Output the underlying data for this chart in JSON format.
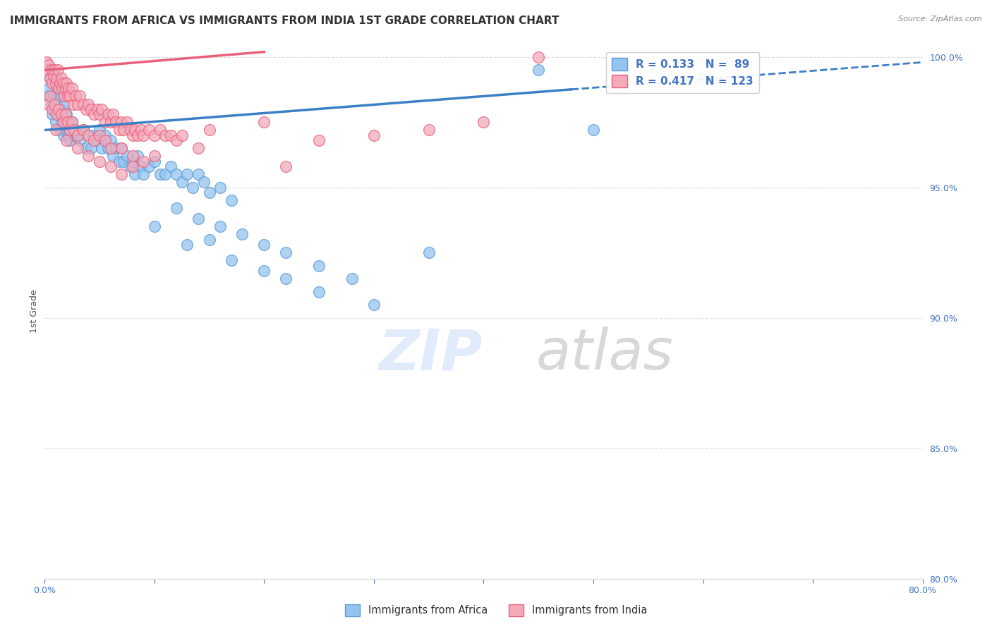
{
  "title": "IMMIGRANTS FROM AFRICA VS IMMIGRANTS FROM INDIA 1ST GRADE CORRELATION CHART",
  "source": "Source: ZipAtlas.com",
  "ylabel": "1st Grade",
  "xlim": [
    0.0,
    80.0
  ],
  "ylim": [
    80.0,
    100.5
  ],
  "xticks": [
    0.0,
    10.0,
    20.0,
    30.0,
    40.0,
    50.0,
    60.0,
    70.0,
    80.0
  ],
  "yticks": [
    80.0,
    85.0,
    90.0,
    95.0,
    100.0
  ],
  "legend_entries": [
    "Immigrants from Africa",
    "Immigrants from India"
  ],
  "africa_color": "#94C4F0",
  "india_color": "#F4AABB",
  "africa_edge_color": "#5B9BD5",
  "india_edge_color": "#E8607A",
  "africa_line_color": "#3B7FC4",
  "india_line_color": "#E8607A",
  "R_africa": 0.133,
  "N_africa": 89,
  "R_india": 0.417,
  "N_india": 123,
  "africa_trend_x": [
    0.0,
    80.0
  ],
  "africa_trend_y": [
    97.2,
    99.8
  ],
  "africa_solid_x_end": 48.0,
  "india_trend_x": [
    0.0,
    20.0
  ],
  "india_trend_y": [
    99.5,
    100.2
  ],
  "africa_points": [
    [
      0.3,
      98.5
    ],
    [
      0.4,
      98.8
    ],
    [
      0.5,
      99.2
    ],
    [
      0.6,
      98.2
    ],
    [
      0.7,
      97.8
    ],
    [
      0.8,
      98.5
    ],
    [
      0.9,
      98.0
    ],
    [
      1.0,
      99.0
    ],
    [
      1.0,
      97.5
    ],
    [
      1.1,
      98.3
    ],
    [
      1.2,
      97.8
    ],
    [
      1.3,
      98.5
    ],
    [
      1.4,
      97.2
    ],
    [
      1.5,
      98.0
    ],
    [
      1.6,
      97.5
    ],
    [
      1.7,
      97.0
    ],
    [
      1.8,
      98.2
    ],
    [
      1.9,
      97.5
    ],
    [
      2.0,
      97.8
    ],
    [
      2.1,
      97.0
    ],
    [
      2.2,
      97.2
    ],
    [
      2.3,
      96.8
    ],
    [
      2.5,
      97.5
    ],
    [
      2.6,
      97.0
    ],
    [
      2.8,
      97.2
    ],
    [
      3.0,
      97.0
    ],
    [
      3.2,
      96.8
    ],
    [
      3.5,
      97.2
    ],
    [
      3.8,
      96.5
    ],
    [
      4.0,
      97.0
    ],
    [
      4.2,
      96.5
    ],
    [
      4.5,
      97.0
    ],
    [
      4.8,
      96.8
    ],
    [
      5.0,
      97.2
    ],
    [
      5.2,
      96.5
    ],
    [
      5.5,
      97.0
    ],
    [
      5.8,
      96.5
    ],
    [
      6.0,
      96.8
    ],
    [
      6.2,
      96.2
    ],
    [
      6.5,
      96.5
    ],
    [
      6.8,
      96.0
    ],
    [
      7.0,
      96.5
    ],
    [
      7.2,
      96.0
    ],
    [
      7.5,
      96.2
    ],
    [
      7.8,
      95.8
    ],
    [
      8.0,
      96.0
    ],
    [
      8.2,
      95.5
    ],
    [
      8.5,
      96.2
    ],
    [
      8.8,
      95.8
    ],
    [
      9.0,
      95.5
    ],
    [
      9.5,
      95.8
    ],
    [
      10.0,
      96.0
    ],
    [
      10.5,
      95.5
    ],
    [
      11.0,
      95.5
    ],
    [
      11.5,
      95.8
    ],
    [
      12.0,
      95.5
    ],
    [
      12.5,
      95.2
    ],
    [
      13.0,
      95.5
    ],
    [
      13.5,
      95.0
    ],
    [
      14.0,
      95.5
    ],
    [
      14.5,
      95.2
    ],
    [
      15.0,
      94.8
    ],
    [
      16.0,
      95.0
    ],
    [
      17.0,
      94.5
    ],
    [
      12.0,
      94.2
    ],
    [
      14.0,
      93.8
    ],
    [
      16.0,
      93.5
    ],
    [
      18.0,
      93.2
    ],
    [
      20.0,
      92.8
    ],
    [
      22.0,
      92.5
    ],
    [
      25.0,
      92.0
    ],
    [
      28.0,
      91.5
    ],
    [
      10.0,
      93.5
    ],
    [
      13.0,
      92.8
    ],
    [
      15.0,
      93.0
    ],
    [
      20.0,
      91.8
    ],
    [
      25.0,
      91.0
    ],
    [
      30.0,
      90.5
    ],
    [
      17.0,
      92.2
    ],
    [
      22.0,
      91.5
    ],
    [
      35.0,
      92.5
    ],
    [
      45.0,
      99.5
    ],
    [
      50.0,
      97.2
    ],
    [
      60.0,
      99.2
    ]
  ],
  "india_points": [
    [
      0.2,
      99.8
    ],
    [
      0.3,
      99.5
    ],
    [
      0.4,
      99.7
    ],
    [
      0.5,
      99.2
    ],
    [
      0.6,
      99.5
    ],
    [
      0.7,
      99.0
    ],
    [
      0.8,
      99.3
    ],
    [
      0.9,
      99.5
    ],
    [
      1.0,
      99.0
    ],
    [
      1.1,
      99.2
    ],
    [
      1.2,
      99.5
    ],
    [
      1.3,
      98.8
    ],
    [
      1.4,
      99.0
    ],
    [
      1.5,
      99.2
    ],
    [
      1.6,
      98.8
    ],
    [
      1.7,
      99.0
    ],
    [
      1.8,
      98.5
    ],
    [
      1.9,
      98.8
    ],
    [
      2.0,
      99.0
    ],
    [
      2.1,
      98.5
    ],
    [
      2.2,
      98.8
    ],
    [
      2.3,
      98.5
    ],
    [
      2.5,
      98.8
    ],
    [
      2.6,
      98.2
    ],
    [
      2.8,
      98.5
    ],
    [
      3.0,
      98.2
    ],
    [
      3.2,
      98.5
    ],
    [
      3.5,
      98.2
    ],
    [
      3.8,
      98.0
    ],
    [
      4.0,
      98.2
    ],
    [
      4.2,
      98.0
    ],
    [
      4.5,
      97.8
    ],
    [
      4.8,
      98.0
    ],
    [
      5.0,
      97.8
    ],
    [
      5.2,
      98.0
    ],
    [
      5.5,
      97.5
    ],
    [
      5.8,
      97.8
    ],
    [
      6.0,
      97.5
    ],
    [
      6.2,
      97.8
    ],
    [
      6.5,
      97.5
    ],
    [
      6.8,
      97.2
    ],
    [
      7.0,
      97.5
    ],
    [
      7.2,
      97.2
    ],
    [
      7.5,
      97.5
    ],
    [
      7.8,
      97.2
    ],
    [
      8.0,
      97.0
    ],
    [
      8.2,
      97.2
    ],
    [
      8.5,
      97.0
    ],
    [
      8.8,
      97.2
    ],
    [
      9.0,
      97.0
    ],
    [
      9.5,
      97.2
    ],
    [
      10.0,
      97.0
    ],
    [
      10.5,
      97.2
    ],
    [
      11.0,
      97.0
    ],
    [
      0.3,
      98.2
    ],
    [
      0.5,
      98.5
    ],
    [
      0.7,
      98.0
    ],
    [
      0.9,
      98.2
    ],
    [
      1.1,
      97.8
    ],
    [
      1.3,
      98.0
    ],
    [
      1.5,
      97.8
    ],
    [
      1.7,
      97.5
    ],
    [
      1.9,
      97.8
    ],
    [
      2.1,
      97.5
    ],
    [
      2.3,
      97.2
    ],
    [
      2.5,
      97.5
    ],
    [
      2.7,
      97.2
    ],
    [
      3.0,
      97.0
    ],
    [
      3.5,
      97.2
    ],
    [
      4.0,
      97.0
    ],
    [
      4.5,
      96.8
    ],
    [
      5.0,
      97.0
    ],
    [
      5.5,
      96.8
    ],
    [
      6.0,
      96.5
    ],
    [
      7.0,
      96.5
    ],
    [
      8.0,
      96.2
    ],
    [
      9.0,
      96.0
    ],
    [
      10.0,
      96.2
    ],
    [
      11.5,
      97.0
    ],
    [
      12.0,
      96.8
    ],
    [
      12.5,
      97.0
    ],
    [
      1.0,
      97.2
    ],
    [
      2.0,
      96.8
    ],
    [
      3.0,
      96.5
    ],
    [
      4.0,
      96.2
    ],
    [
      5.0,
      96.0
    ],
    [
      6.0,
      95.8
    ],
    [
      7.0,
      95.5
    ],
    [
      8.0,
      95.8
    ],
    [
      15.0,
      97.2
    ],
    [
      20.0,
      97.5
    ],
    [
      25.0,
      96.8
    ],
    [
      30.0,
      97.0
    ],
    [
      35.0,
      97.2
    ],
    [
      40.0,
      97.5
    ],
    [
      14.0,
      96.5
    ],
    [
      22.0,
      95.8
    ],
    [
      45.0,
      100.0
    ]
  ],
  "watermark_zip": "ZIP",
  "watermark_atlas": "atlas",
  "background_color": "#ffffff",
  "title_fontsize": 11,
  "axis_label_fontsize": 9,
  "tick_fontsize": 9,
  "tick_color": "#4472C4",
  "grid_color": "#DDDDDD",
  "legend_text_color": "#4472C4",
  "source_color": "#888888"
}
